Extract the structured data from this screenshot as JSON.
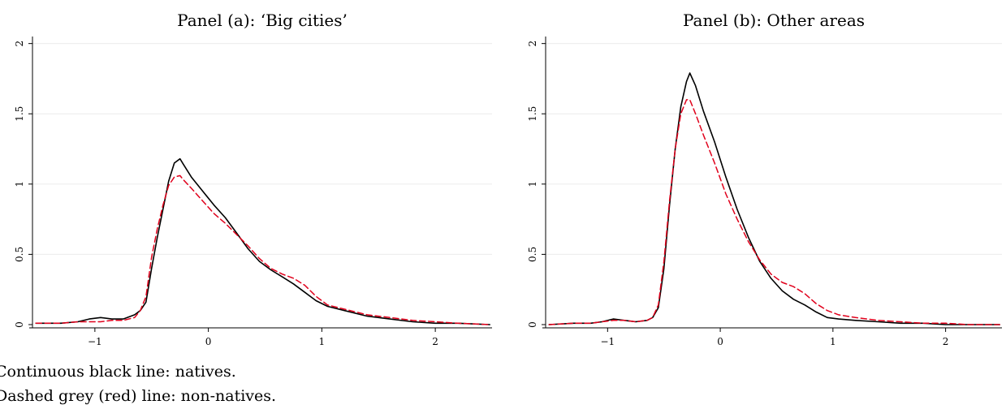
{
  "notes": {
    "line1": "Continuous black line: natives.",
    "line2": "Dashed grey (red) line: non-natives."
  },
  "colors": {
    "natives": "#000000",
    "non_natives": "#e0001b",
    "grid": "#ececec",
    "axis": "#000000"
  },
  "chart_data": [
    {
      "type": "line",
      "title": "Panel (a): ‘Big cities’",
      "xlabel": "",
      "ylabel": "",
      "xlim": [
        -1.55,
        2.5
      ],
      "ylim": [
        0,
        2.05
      ],
      "x_ticks": [
        -1,
        0,
        1,
        2
      ],
      "x_tick_labels": [
        "−1",
        "0",
        "1",
        "2"
      ],
      "y_ticks": [
        0,
        0.5,
        1,
        1.5,
        2
      ],
      "y_tick_labels": [
        "0",
        "0.5",
        "1",
        "1.5",
        "2"
      ],
      "grid": true,
      "series": [
        {
          "style": "solid",
          "color": "#000000",
          "x": [
            -1.52,
            -1.3,
            -1.15,
            -1.05,
            -0.95,
            -0.85,
            -0.75,
            -0.65,
            -0.6,
            -0.55,
            -0.5,
            -0.45,
            -0.4,
            -0.35,
            -0.3,
            -0.25,
            -0.22,
            -0.15,
            -0.05,
            0.05,
            0.15,
            0.25,
            0.35,
            0.45,
            0.55,
            0.65,
            0.75,
            0.85,
            0.95,
            1.05,
            1.2,
            1.4,
            1.6,
            1.8,
            2.0,
            2.2,
            2.48
          ],
          "y": [
            0.01,
            0.01,
            0.02,
            0.04,
            0.05,
            0.04,
            0.04,
            0.07,
            0.1,
            0.16,
            0.4,
            0.62,
            0.82,
            1.02,
            1.15,
            1.18,
            1.14,
            1.05,
            0.95,
            0.85,
            0.76,
            0.65,
            0.54,
            0.45,
            0.39,
            0.34,
            0.29,
            0.23,
            0.17,
            0.13,
            0.1,
            0.06,
            0.04,
            0.02,
            0.01,
            0.01,
            0.0
          ]
        },
        {
          "style": "dashed",
          "color": "#e0001b",
          "x": [
            -1.52,
            -1.3,
            -1.15,
            -1.05,
            -0.95,
            -0.85,
            -0.75,
            -0.65,
            -0.6,
            -0.55,
            -0.5,
            -0.45,
            -0.4,
            -0.35,
            -0.3,
            -0.25,
            -0.22,
            -0.15,
            -0.05,
            0.05,
            0.15,
            0.25,
            0.35,
            0.45,
            0.55,
            0.65,
            0.75,
            0.85,
            0.95,
            1.05,
            1.2,
            1.4,
            1.6,
            1.8,
            2.0,
            2.2,
            2.48
          ],
          "y": [
            0.01,
            0.01,
            0.02,
            0.02,
            0.02,
            0.03,
            0.03,
            0.05,
            0.1,
            0.2,
            0.48,
            0.68,
            0.85,
            0.99,
            1.05,
            1.06,
            1.03,
            0.97,
            0.88,
            0.79,
            0.72,
            0.64,
            0.56,
            0.47,
            0.4,
            0.36,
            0.33,
            0.28,
            0.2,
            0.14,
            0.11,
            0.07,
            0.05,
            0.03,
            0.02,
            0.01,
            0.0
          ]
        }
      ]
    },
    {
      "type": "line",
      "title": "Panel (b): Other areas",
      "xlabel": "",
      "ylabel": "",
      "xlim": [
        -1.55,
        2.5
      ],
      "ylim": [
        0,
        2.05
      ],
      "x_ticks": [
        -1,
        0,
        1,
        2
      ],
      "x_tick_labels": [
        "−1",
        "0",
        "1",
        "2"
      ],
      "y_ticks": [
        0,
        0.5,
        1,
        1.5,
        2
      ],
      "y_tick_labels": [
        "0",
        "0.5",
        "1",
        "1.5",
        "2"
      ],
      "grid": true,
      "series": [
        {
          "style": "solid",
          "color": "#000000",
          "x": [
            -1.52,
            -1.3,
            -1.15,
            -1.05,
            -0.95,
            -0.85,
            -0.75,
            -0.65,
            -0.6,
            -0.55,
            -0.5,
            -0.45,
            -0.4,
            -0.35,
            -0.3,
            -0.27,
            -0.22,
            -0.15,
            -0.05,
            0.05,
            0.15,
            0.25,
            0.35,
            0.45,
            0.55,
            0.65,
            0.75,
            0.85,
            0.95,
            1.05,
            1.2,
            1.4,
            1.6,
            1.8,
            2.0,
            2.2,
            2.48
          ],
          "y": [
            0.0,
            0.01,
            0.01,
            0.02,
            0.04,
            0.03,
            0.02,
            0.03,
            0.05,
            0.12,
            0.4,
            0.85,
            1.25,
            1.55,
            1.73,
            1.79,
            1.7,
            1.52,
            1.3,
            1.05,
            0.82,
            0.62,
            0.45,
            0.33,
            0.24,
            0.18,
            0.14,
            0.09,
            0.05,
            0.04,
            0.03,
            0.02,
            0.01,
            0.01,
            0.0,
            0.0,
            0.0
          ]
        },
        {
          "style": "dashed",
          "color": "#e0001b",
          "x": [
            -1.52,
            -1.3,
            -1.15,
            -1.05,
            -0.95,
            -0.85,
            -0.75,
            -0.65,
            -0.6,
            -0.55,
            -0.5,
            -0.45,
            -0.4,
            -0.35,
            -0.3,
            -0.27,
            -0.22,
            -0.15,
            -0.05,
            0.05,
            0.15,
            0.25,
            0.35,
            0.45,
            0.55,
            0.65,
            0.75,
            0.85,
            0.95,
            1.05,
            1.2,
            1.4,
            1.6,
            1.8,
            2.0,
            2.2,
            2.48
          ],
          "y": [
            0.0,
            0.01,
            0.01,
            0.02,
            0.03,
            0.03,
            0.02,
            0.03,
            0.05,
            0.14,
            0.45,
            0.88,
            1.25,
            1.5,
            1.6,
            1.6,
            1.5,
            1.35,
            1.15,
            0.93,
            0.75,
            0.59,
            0.46,
            0.36,
            0.3,
            0.27,
            0.22,
            0.15,
            0.1,
            0.07,
            0.05,
            0.03,
            0.02,
            0.01,
            0.01,
            0.0,
            0.0
          ]
        }
      ]
    }
  ]
}
